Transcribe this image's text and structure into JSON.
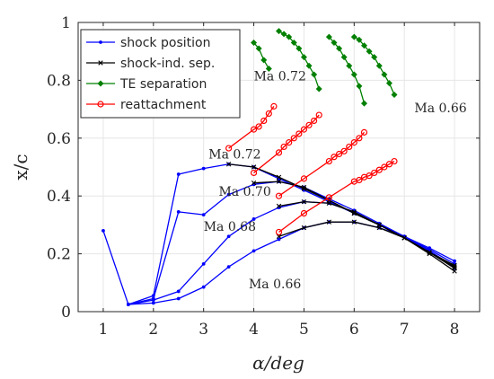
{
  "chart_data": {
    "type": "line",
    "xlabel": "α/deg",
    "ylabel": "x/c",
    "xlim": [
      0.5,
      8.5
    ],
    "ylim": [
      0,
      1
    ],
    "xticks": [
      1,
      2,
      3,
      4,
      5,
      6,
      7,
      8
    ],
    "yticks": [
      0,
      0.2,
      0.4,
      0.6,
      0.8,
      1
    ],
    "ytick_labels": [
      "0",
      "0.2",
      "0.4",
      "0.6",
      "0.8",
      "1"
    ],
    "grid": true,
    "legend_position": "top-left",
    "legend": [
      {
        "label": "shock position",
        "color": "#0000ff",
        "marker": "dot"
      },
      {
        "label": "shock-ind. sep.",
        "color": "#000000",
        "marker": "x"
      },
      {
        "label": "TE separation",
        "color": "#008000",
        "marker": "diamond"
      },
      {
        "label": "reattachment",
        "color": "#ff0000",
        "marker": "circle"
      }
    ],
    "annotations": [
      {
        "text": "Ma 0.72",
        "x": 4.0,
        "y": 0.8
      },
      {
        "text": "Ma 0.66",
        "x": 7.2,
        "y": 0.69
      },
      {
        "text": "Ma 0.72",
        "x": 3.1,
        "y": 0.53
      },
      {
        "text": "Ma 0.70",
        "x": 3.3,
        "y": 0.4
      },
      {
        "text": "Ma 0.68",
        "x": 3.0,
        "y": 0.28
      },
      {
        "text": "Ma 0.66",
        "x": 3.9,
        "y": 0.08
      }
    ],
    "series": [
      {
        "group": "shock position",
        "color": "#0000ff",
        "marker": "dot",
        "x": [
          1,
          1.5,
          2,
          2.5,
          3,
          3.5,
          4,
          4.5,
          5,
          5.5,
          6,
          6.5,
          7,
          7.5,
          8
        ],
        "y": [
          0.28,
          0.025,
          0.055,
          0.475,
          0.495,
          0.51,
          0.5,
          0.46,
          0.42,
          0.38,
          0.34,
          0.3,
          0.26,
          0.22,
          0.175
        ]
      },
      {
        "group": "shock position",
        "color": "#0000ff",
        "marker": "dot",
        "x": [
          1.5,
          2,
          2.5,
          3,
          3.5,
          4,
          4.5,
          5,
          5.5,
          6,
          6.5,
          7,
          7.5,
          8
        ],
        "y": [
          0.025,
          0.045,
          0.345,
          0.335,
          0.405,
          0.44,
          0.45,
          0.43,
          0.39,
          0.35,
          0.305,
          0.26,
          0.215,
          0.165
        ]
      },
      {
        "group": "shock position",
        "color": "#0000ff",
        "marker": "dot",
        "x": [
          1.5,
          2,
          2.5,
          3,
          3.5,
          4,
          4.5,
          5,
          5.5,
          6,
          6.5,
          7,
          7.5,
          8
        ],
        "y": [
          0.025,
          0.04,
          0.07,
          0.165,
          0.26,
          0.32,
          0.36,
          0.38,
          0.375,
          0.345,
          0.3,
          0.26,
          0.21,
          0.155
        ]
      },
      {
        "group": "shock position",
        "color": "#0000ff",
        "marker": "dot",
        "x": [
          1.5,
          2,
          2.5,
          3,
          3.5,
          4,
          4.5,
          5,
          5.5,
          6,
          6.5,
          7,
          7.5,
          8
        ],
        "y": [
          0.025,
          0.03,
          0.045,
          0.085,
          0.155,
          0.21,
          0.25,
          0.29,
          0.31,
          0.31,
          0.29,
          0.26,
          0.21,
          0.15
        ]
      },
      {
        "group": "shock-ind. sep.",
        "color": "#000000",
        "marker": "x",
        "x": [
          3.5,
          4,
          4.5,
          5,
          5.5,
          6,
          6.5,
          7,
          7.5,
          8
        ],
        "y": [
          0.51,
          0.5,
          0.465,
          0.425,
          0.385,
          0.34,
          0.3,
          0.255,
          0.205,
          0.16
        ]
      },
      {
        "group": "shock-ind. sep.",
        "color": "#000000",
        "marker": "x",
        "x": [
          4,
          4.5,
          5,
          5.5,
          6,
          6.5,
          7,
          7.5,
          8
        ],
        "y": [
          0.445,
          0.45,
          0.43,
          0.385,
          0.34,
          0.3,
          0.255,
          0.205,
          0.155
        ]
      },
      {
        "group": "shock-ind. sep.",
        "color": "#000000",
        "marker": "x",
        "x": [
          4.5,
          5,
          5.5,
          6,
          6.5,
          7,
          7.5,
          8
        ],
        "y": [
          0.365,
          0.38,
          0.375,
          0.345,
          0.3,
          0.255,
          0.205,
          0.15
        ]
      },
      {
        "group": "shock-ind. sep.",
        "color": "#000000",
        "marker": "x",
        "x": [
          4.5,
          5,
          5.5,
          6,
          6.5,
          7,
          7.5,
          8
        ],
        "y": [
          0.26,
          0.29,
          0.31,
          0.31,
          0.29,
          0.255,
          0.2,
          0.14
        ]
      },
      {
        "group": "TE separation",
        "color": "#008000",
        "marker": "diamond",
        "x": [
          4.0,
          4.1,
          4.2,
          4.3
        ],
        "y": [
          0.93,
          0.91,
          0.87,
          0.84
        ]
      },
      {
        "group": "TE separation",
        "color": "#008000",
        "marker": "diamond",
        "x": [
          4.5,
          4.6,
          4.7,
          4.8,
          4.9,
          5.0,
          5.1,
          5.2,
          5.3
        ],
        "y": [
          0.97,
          0.96,
          0.95,
          0.93,
          0.91,
          0.88,
          0.85,
          0.82,
          0.77
        ]
      },
      {
        "group": "TE separation",
        "color": "#008000",
        "marker": "diamond",
        "x": [
          5.5,
          5.6,
          5.7,
          5.8,
          5.9,
          6.0,
          6.1,
          6.2
        ],
        "y": [
          0.95,
          0.93,
          0.91,
          0.88,
          0.85,
          0.82,
          0.78,
          0.72
        ]
      },
      {
        "group": "TE separation",
        "color": "#008000",
        "marker": "diamond",
        "x": [
          6.0,
          6.1,
          6.2,
          6.3,
          6.4,
          6.5,
          6.6,
          6.7,
          6.8
        ],
        "y": [
          0.95,
          0.94,
          0.92,
          0.9,
          0.88,
          0.85,
          0.82,
          0.79,
          0.75
        ]
      },
      {
        "group": "reattachment",
        "color": "#ff0000",
        "marker": "circle",
        "x": [
          3.5,
          4,
          4.1,
          4.2,
          4.3,
          4.4
        ],
        "y": [
          0.565,
          0.63,
          0.64,
          0.66,
          0.685,
          0.71
        ]
      },
      {
        "group": "reattachment",
        "color": "#ff0000",
        "marker": "circle",
        "x": [
          4.0,
          4.5,
          4.6,
          4.7,
          4.8,
          4.9,
          5.0,
          5.1,
          5.2,
          5.3
        ],
        "y": [
          0.48,
          0.55,
          0.57,
          0.585,
          0.6,
          0.615,
          0.63,
          0.645,
          0.66,
          0.68
        ]
      },
      {
        "group": "reattachment",
        "color": "#ff0000",
        "marker": "circle",
        "x": [
          4.5,
          5.0,
          5.5,
          5.6,
          5.7,
          5.8,
          5.9,
          6.0,
          6.1,
          6.2
        ],
        "y": [
          0.4,
          0.46,
          0.52,
          0.535,
          0.545,
          0.555,
          0.57,
          0.585,
          0.6,
          0.62
        ]
      },
      {
        "group": "reattachment",
        "color": "#ff0000",
        "marker": "circle",
        "x": [
          4.5,
          5.0,
          5.5,
          6.0,
          6.1,
          6.2,
          6.3,
          6.4,
          6.5,
          6.6,
          6.7,
          6.8
        ],
        "y": [
          0.275,
          0.34,
          0.395,
          0.45,
          0.455,
          0.465,
          0.47,
          0.48,
          0.49,
          0.5,
          0.51,
          0.52
        ]
      }
    ]
  }
}
